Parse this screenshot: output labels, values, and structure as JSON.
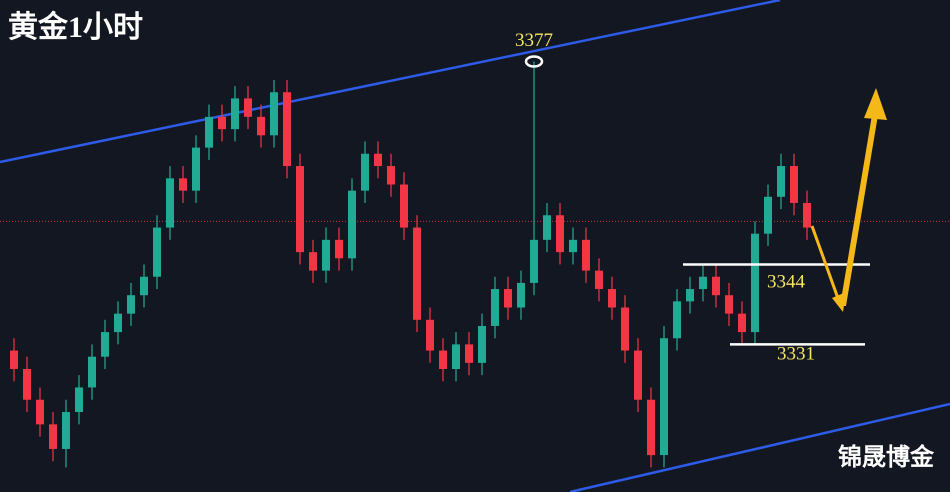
{
  "chart_data": {
    "type": "candlestick",
    "title": "黄金1小时",
    "watermark": "锦晟博金",
    "ylim": [
      3307,
      3387
    ],
    "up_color": "#22ab94",
    "down_color": "#f23645",
    "open": [
      3330,
      3327,
      3322,
      3318,
      3314,
      3320,
      3324,
      3329,
      3333,
      3336,
      3339,
      3342,
      3350,
      3358,
      3356,
      3363,
      3368,
      3366,
      3371,
      3368,
      3365,
      3372,
      3360,
      3346,
      3343,
      3348,
      3345,
      3356,
      3362,
      3360,
      3357,
      3350,
      3335,
      3330,
      3327,
      3331,
      3328,
      3334,
      3340,
      3337,
      3341,
      3348,
      3352,
      3346,
      3348,
      3343,
      3340,
      3337,
      3330,
      3322,
      3313,
      3332,
      3338,
      3340,
      3342,
      3339,
      3336,
      3333,
      3349,
      3355,
      3360,
      3354
    ],
    "high": [
      3332,
      3329,
      3324,
      3320,
      3322,
      3326,
      3331,
      3335,
      3338,
      3341,
      3344,
      3352,
      3360,
      3360,
      3365,
      3370,
      3370,
      3373,
      3373,
      3370,
      3374,
      3374,
      3362,
      3348,
      3350,
      3350,
      3358,
      3364,
      3364,
      3362,
      3359,
      3352,
      3337,
      3332,
      3333,
      3333,
      3336,
      3342,
      3342,
      3343,
      3377,
      3354,
      3354,
      3350,
      3350,
      3345,
      3342,
      3339,
      3332,
      3324,
      3334,
      3340,
      3342,
      3344,
      3344,
      3341,
      3338,
      3351,
      3357,
      3362,
      3362,
      3356
    ],
    "low": [
      3325,
      3320,
      3316,
      3312,
      3311,
      3318,
      3322,
      3327,
      3331,
      3334,
      3337,
      3340,
      3348,
      3354,
      3354,
      3361,
      3364,
      3364,
      3366,
      3363,
      3363,
      3358,
      3344,
      3341,
      3341,
      3343,
      3343,
      3354,
      3358,
      3355,
      3348,
      3333,
      3328,
      3325,
      3325,
      3326,
      3326,
      3332,
      3335,
      3335,
      3339,
      3346,
      3344,
      3344,
      3341,
      3338,
      3335,
      3328,
      3320,
      3311,
      3311,
      3330,
      3336,
      3338,
      3337,
      3334,
      3331,
      3331,
      3347,
      3353,
      3352,
      3348
    ],
    "close": [
      3327,
      3322,
      3318,
      3314,
      3320,
      3324,
      3329,
      3333,
      3336,
      3339,
      3342,
      3350,
      3358,
      3356,
      3363,
      3368,
      3366,
      3371,
      3368,
      3365,
      3372,
      3360,
      3346,
      3343,
      3348,
      3345,
      3356,
      3362,
      3360,
      3357,
      3350,
      3335,
      3330,
      3327,
      3331,
      3328,
      3334,
      3340,
      3337,
      3341,
      3348,
      3352,
      3346,
      3348,
      3343,
      3340,
      3337,
      3330,
      3322,
      3313,
      3332,
      3338,
      3340,
      3342,
      3339,
      3336,
      3333,
      3349,
      3355,
      3360,
      3354,
      3350
    ],
    "price_line": {
      "value": 3351,
      "color": "#f23645"
    },
    "peak": {
      "value": 3377,
      "color": "#ffffff",
      "label_color": "#f5e663"
    },
    "levels": [
      {
        "value": 3344,
        "color": "#ffffff",
        "label_color": "#f5e663"
      },
      {
        "value": 3331,
        "color": "#ffffff",
        "label_color": "#f5e663"
      }
    ]
  }
}
